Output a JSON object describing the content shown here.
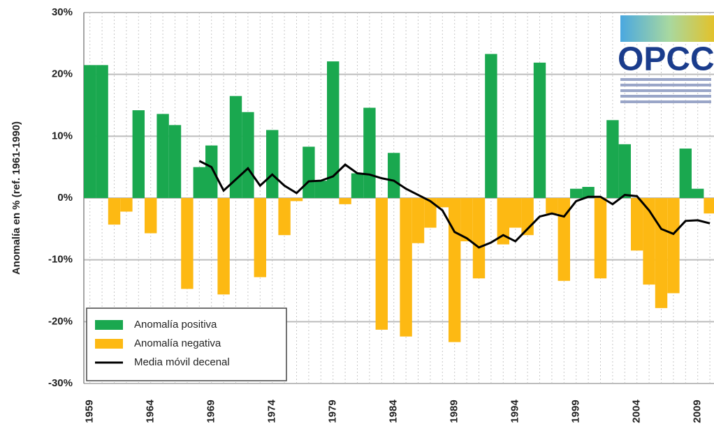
{
  "chart_data": {
    "type": "bar",
    "y_label": "Anomalía en % (ref. 1961-1990)",
    "logo": "OPCC",
    "categories": [
      "1959",
      null,
      null,
      null,
      null,
      "1964",
      null,
      null,
      null,
      null,
      "1969",
      null,
      null,
      null,
      null,
      "1974",
      null,
      null,
      null,
      null,
      "1979",
      null,
      null,
      null,
      null,
      "1984",
      null,
      null,
      null,
      null,
      "1989",
      null,
      null,
      null,
      null,
      "1994",
      null,
      null,
      null,
      null,
      "1999",
      null,
      null,
      null,
      null,
      "2004",
      null,
      null,
      null,
      null,
      "2009",
      null
    ],
    "series": [
      {
        "name": "Anomalía positiva",
        "color": "#1aa84f",
        "values": [
          21.5,
          21.5,
          null,
          null,
          14.2,
          null,
          13.6,
          11.8,
          null,
          5,
          8.5,
          null,
          16.5,
          13.9,
          null,
          11,
          null,
          null,
          8.3,
          2.8,
          22.1,
          null,
          4,
          14.6,
          null,
          7.3,
          null,
          null,
          null,
          null,
          null,
          null,
          null,
          23.3,
          null,
          null,
          null,
          21.9,
          null,
          null,
          1.5,
          1.8,
          null,
          12.6,
          8.7,
          null,
          null,
          null,
          null,
          8,
          1.5,
          null
        ]
      },
      {
        "name": "Anomalía negativa",
        "color": "#fdb913",
        "values": [
          null,
          null,
          -4.3,
          -2.2,
          null,
          -5.7,
          null,
          null,
          -14.7,
          null,
          null,
          -15.6,
          null,
          null,
          -12.8,
          null,
          -6,
          -0.5,
          null,
          null,
          null,
          -1,
          null,
          null,
          -21.3,
          null,
          -22.4,
          -7.3,
          -4.8,
          -1.5,
          -23.3,
          -7,
          -13,
          null,
          -7.5,
          -4.8,
          -6,
          null,
          -2.5,
          -13.4,
          null,
          null,
          -13,
          null,
          null,
          -8.5,
          -14,
          -17.8,
          -15.4,
          null,
          null,
          -2.5
        ]
      },
      {
        "name": "Media móvil decenal",
        "color": "#000000",
        "line": true,
        "values": [
          null,
          null,
          null,
          null,
          null,
          null,
          null,
          null,
          null,
          6,
          5,
          1.2,
          3,
          4.8,
          2,
          3.8,
          2,
          0.8,
          2.7,
          2.8,
          3.5,
          5.4,
          4,
          3.8,
          3.2,
          2.8,
          1.5,
          0.5,
          -0.5,
          -2,
          -5.5,
          -6.5,
          -8,
          -7.2,
          -6,
          -7,
          -5,
          -3,
          -2.5,
          -3,
          -0.5,
          0.2,
          0.2,
          -1,
          0.5,
          0.3,
          -2,
          -5,
          -5.8,
          -3.7,
          -3.6,
          -4.1
        ]
      }
    ],
    "ylim": [
      -30,
      30
    ],
    "yticks": [
      {
        "value": -30,
        "label": "-30%"
      },
      {
        "value": -20,
        "label": "-20%"
      },
      {
        "value": -10,
        "label": "-10%"
      },
      {
        "value": 0,
        "label": "0%"
      },
      {
        "value": 10,
        "label": "10%"
      },
      {
        "value": 20,
        "label": "20%"
      },
      {
        "value": 30,
        "label": "30%"
      }
    ],
    "grid": true,
    "legend": "lower left"
  }
}
